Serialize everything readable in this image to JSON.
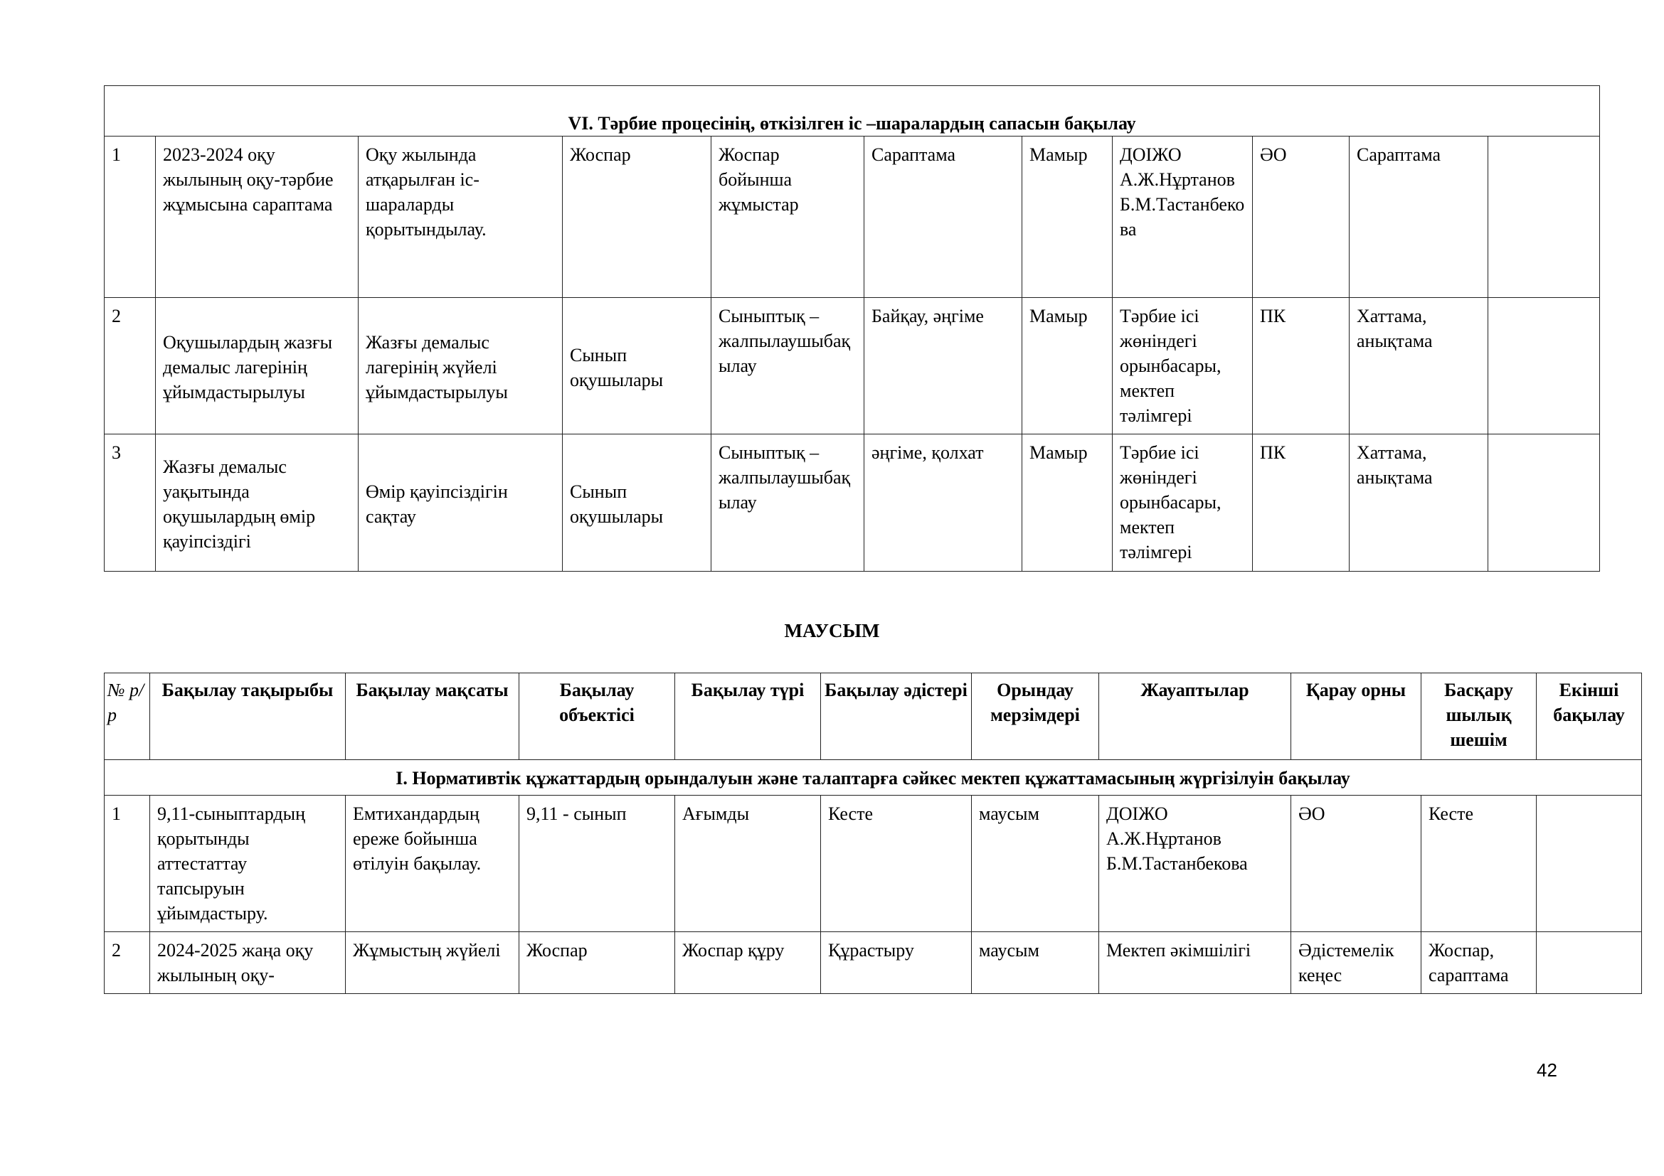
{
  "table1": {
    "section_title": "VI. Тәрбие процесінің, өткізілген іс –шаралардың сапасын бақылау",
    "rows": [
      {
        "cells": [
          "1",
          "2023-2024 оқу жылының оқу-тәрбие жұмысына сараптама",
          "Оқу жылында атқарылған іс-шараларды қорытындылау.",
          "Жоспар",
          "Жоспар бойынша жұмыстар",
          "Сараптама",
          "Мамыр",
          "ДОІЖО А.Ж.Нұртанов Б.М.Тастанбекова",
          "ӘО",
          "Сараптама",
          ""
        ]
      },
      {
        "cells": [
          "2",
          "Оқушылардың жазғы  демалыс лагерінің ұйымдастырылуы",
          "Жазғы демалыс лагерінің  жүйелі ұйымдастырылуы",
          "Сынып оқушылары",
          "Сыныптық – жалпылаушыбақылау",
          "Байқау, әңгіме",
          "Мамыр",
          "Тәрбие ісі жөніндегі орынбасары, мектеп тәлімгері",
          "ПК",
          "Хаттама, анықтама",
          ""
        ]
      },
      {
        "cells": [
          "3",
          "Жазғы демалыс уақытында оқушылардың  өмір қауіпсіздігі",
          "Өмір қауіпсіздігін сақтау",
          "Сынып оқушылары",
          "Сыныптық – жалпылаушыбақылау",
          "әңгіме, қолхат",
          "Мамыр",
          "Тәрбие ісі жөніндегі орынбасары, мектеп тәлімгері",
          "ПК",
          "Хаттама, анықтама",
          ""
        ]
      }
    ]
  },
  "month_title": "МАУСЫМ",
  "table2": {
    "headers": [
      "№ р/р",
      "Бақылау тақырыбы",
      "Бақылау мақсаты",
      "Бақылау объектісі",
      "Бақылау түрі",
      "Бақылау әдістері",
      "Орындау мерзімдері",
      "Жауаптылар",
      "Қарау орны",
      "Басқару шылық шешім",
      "Екінші бақылау"
    ],
    "section_title": "І. Нормативтік құжаттардың орындалуын және талаптарға сәйкес мектеп құжаттамасының жүргізілуін бақылау",
    "rows": [
      {
        "cells": [
          "1",
          "9,11-сыныптардың қорытынды аттестаттау тапсыруын ұйымдастыру.",
          "Емтихандардың ереже бойынша өтілуін бақылау.",
          "9,11 - сынып",
          "Ағымды",
          "Кесте",
          "маусым",
          "ДОІЖО А.Ж.Нұртанов Б.М.Тастанбекова",
          "ӘО",
          "Кесте",
          ""
        ]
      },
      {
        "cells": [
          "2",
          "2024-2025 жаңа оқу жылының оқу-",
          "Жұмыстың жүйелі",
          "Жоспар",
          "Жоспар құру",
          "Құрастыру",
          "маусым",
          "Мектеп әкімшілігі",
          "Әдістемелік кеңес",
          "Жоспар, сараптама",
          ""
        ]
      }
    ]
  },
  "page_number": "42"
}
